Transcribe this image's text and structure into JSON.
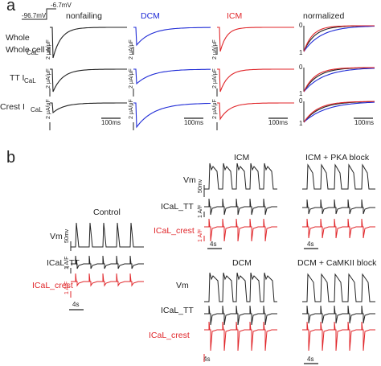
{
  "panel_a": {
    "label": "a",
    "protocol": {
      "holding": "-96.7mV",
      "step": "-6.7mV"
    },
    "columns": [
      {
        "title": "nonfailing",
        "color": "#222222"
      },
      {
        "title": "DCM",
        "color": "#1f2bd6"
      },
      {
        "title": "ICM",
        "color": "#e0262a"
      },
      {
        "title": "normalized",
        "color": "#222222"
      }
    ],
    "rows": [
      "Whole cell I",
      "TT I",
      "Crest I"
    ],
    "row_sub": "CaL",
    "scale_label": "2 μA/μF",
    "time_scale": "100ms",
    "norm_ticks": [
      "0",
      "1"
    ]
  },
  "panel_b": {
    "label": "b",
    "groups": [
      {
        "title": "Control"
      },
      {
        "title": "ICM"
      },
      {
        "title": "ICM + PKA block"
      },
      {
        "title": "DCM"
      },
      {
        "title": "DCM + CaMKII block"
      }
    ],
    "trace_labels": {
      "vm": "Vm",
      "tt": "ICaL_TT",
      "crest": "ICaL_crest"
    },
    "vm_scale": "50mv",
    "current_scale": "1 A/F",
    "time_scale": "4s",
    "crest_color": "#e0262a"
  }
}
